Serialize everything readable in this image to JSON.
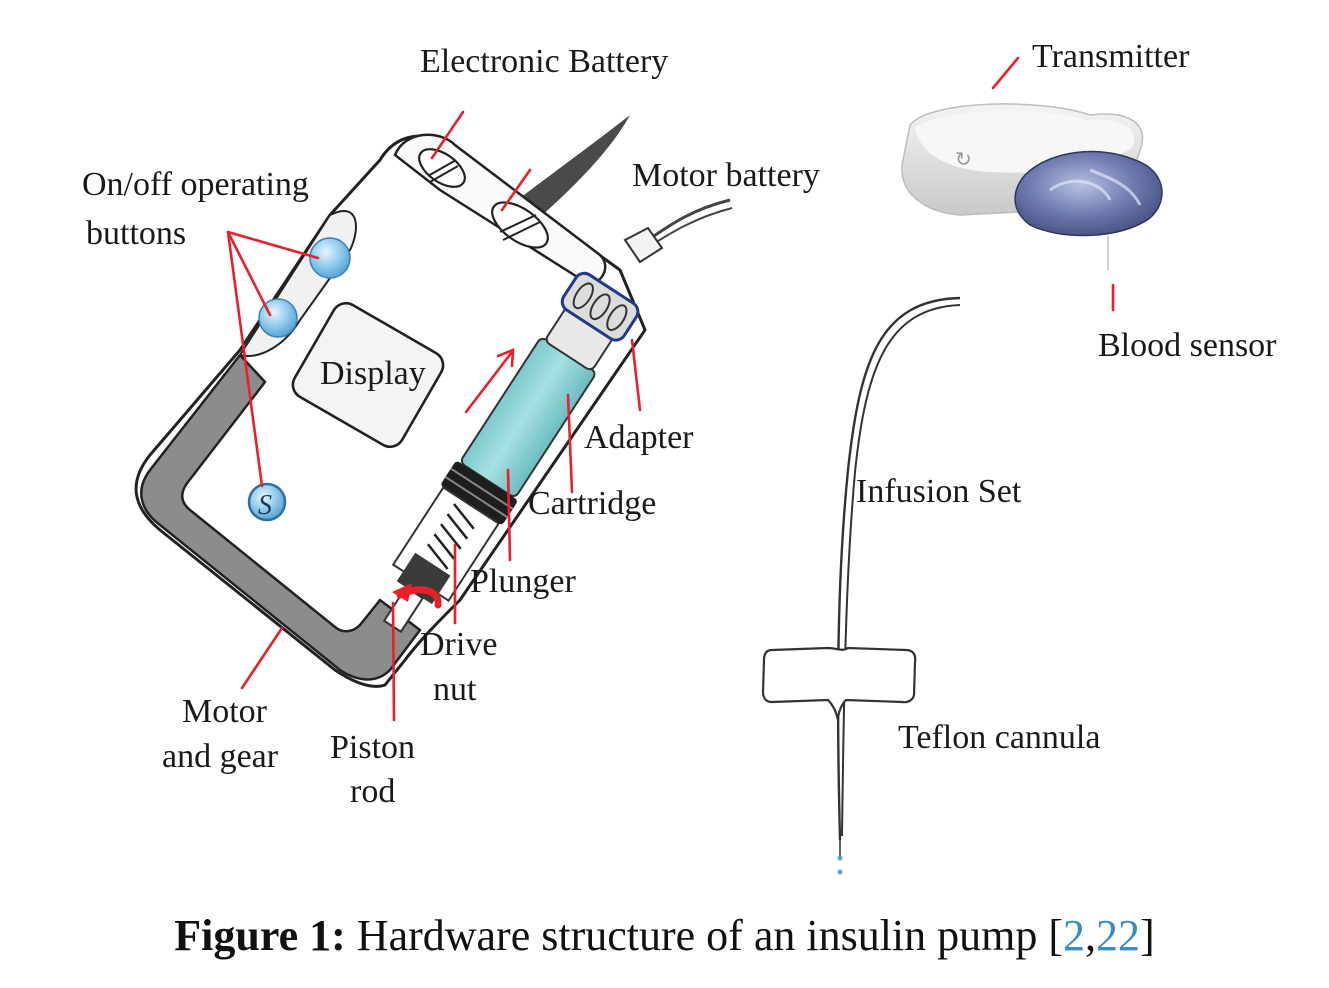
{
  "labels": {
    "electronic_battery": "Electronic Battery",
    "on_off_line1": "On/off operating",
    "on_off_line2": "buttons",
    "motor_battery": "Motor battery",
    "display": "Display",
    "adapter": "Adapter",
    "cartridge": "Cartridge",
    "plunger": "Plunger",
    "drive_nut_line1": "Drive",
    "drive_nut_line2": "nut",
    "motor_gear_line1": "Motor",
    "motor_gear_line2": "and gear",
    "piston_rod_line1": "Piston",
    "piston_rod_line2": "rod",
    "button_s": "S",
    "transmitter": "Transmitter",
    "blood_sensor": "Blood sensor",
    "infusion_set": "Infusion Set",
    "teflon_cannula": "Teflon cannula"
  },
  "caption": {
    "figure_number": "Figure 1:",
    "text": "Hardware structure of an insulin pump [",
    "ref1": "2",
    "separator": ",",
    "ref2": "22",
    "close": "]"
  },
  "colors": {
    "leader_lines": "#e8202a",
    "cartridge_fill": "#8fd5d8",
    "button_blue": "#8ec9ea",
    "gear_frame": "#8c8c8c",
    "sensor_blue": "#5e6a9a",
    "reference_link": "#3a8cc6"
  }
}
